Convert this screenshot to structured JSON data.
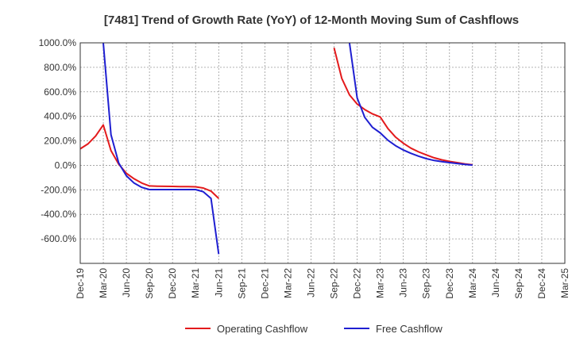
{
  "chart_data": {
    "type": "line",
    "title": "[7481]  Trend of Growth Rate (YoY) of 12-Month Moving Sum of Cashflows",
    "xlabel": "",
    "ylabel": "",
    "ylim": [
      -800,
      1000
    ],
    "yticks": [
      -600,
      -400,
      -200,
      0,
      200,
      400,
      600,
      800,
      1000
    ],
    "ytick_labels": [
      "-600.0%",
      "-400.0%",
      "-200.0%",
      "0.0%",
      "200.0%",
      "400.0%",
      "600.0%",
      "800.0%",
      "1000.0%"
    ],
    "xticks": [
      "Dec-19",
      "Mar-20",
      "Jun-20",
      "Sep-20",
      "Dec-20",
      "Mar-21",
      "Jun-21",
      "Sep-21",
      "Dec-21",
      "Mar-22",
      "Jun-22",
      "Sep-22",
      "Dec-22",
      "Mar-23",
      "Jun-23",
      "Sep-23",
      "Dec-23",
      "Mar-24",
      "Jun-24",
      "Sep-24",
      "Dec-24",
      "Mar-25"
    ],
    "grid": true,
    "legend_position": "bottom",
    "series": [
      {
        "name": "Operating Cashflow",
        "color": "#e31a1c",
        "points": [
          [
            "Dec-19",
            135
          ],
          [
            "Jan-20",
            175
          ],
          [
            "Feb-20",
            240
          ],
          [
            "Mar-20",
            330
          ],
          [
            "Apr-20",
            120
          ],
          [
            "May-20",
            10
          ],
          [
            "Jun-20",
            -65
          ],
          [
            "Jul-20",
            -110
          ],
          [
            "Aug-20",
            -145
          ],
          [
            "Sep-20",
            -168
          ],
          [
            "Oct-20",
            -170
          ],
          [
            "Nov-20",
            -171
          ],
          [
            "Dec-20",
            -172
          ],
          [
            "Jan-21",
            -173
          ],
          [
            "Feb-21",
            -174
          ],
          [
            "Mar-21",
            -175
          ],
          [
            "Apr-21",
            -185
          ],
          [
            "May-21",
            -210
          ],
          [
            "Jun-21",
            -270
          ],
          [
            "Sep-22",
            960
          ],
          [
            "Oct-22",
            710
          ],
          [
            "Nov-22",
            575
          ],
          [
            "Dec-22",
            500
          ],
          [
            "Jan-23",
            455
          ],
          [
            "Feb-23",
            420
          ],
          [
            "Mar-23",
            395
          ],
          [
            "Apr-23",
            300
          ],
          [
            "May-23",
            230
          ],
          [
            "Jun-23",
            180
          ],
          [
            "Jul-23",
            140
          ],
          [
            "Aug-23",
            110
          ],
          [
            "Sep-23",
            85
          ],
          [
            "Oct-23",
            62
          ],
          [
            "Nov-23",
            45
          ],
          [
            "Dec-23",
            32
          ],
          [
            "Jan-24",
            22
          ],
          [
            "Feb-24",
            12
          ],
          [
            "Mar-24",
            5
          ]
        ]
      },
      {
        "name": "Free Cashflow",
        "color": "#1f1fd1",
        "points": [
          [
            "Mar-20",
            1000
          ],
          [
            "Apr-20",
            250
          ],
          [
            "May-20",
            20
          ],
          [
            "Jun-20",
            -85
          ],
          [
            "Jul-20",
            -145
          ],
          [
            "Aug-20",
            -180
          ],
          [
            "Sep-20",
            -198
          ],
          [
            "Oct-20",
            -198
          ],
          [
            "Nov-20",
            -198
          ],
          [
            "Dec-20",
            -198
          ],
          [
            "Jan-21",
            -198
          ],
          [
            "Feb-21",
            -198
          ],
          [
            "Mar-21",
            -198
          ],
          [
            "Apr-21",
            -215
          ],
          [
            "May-21",
            -270
          ],
          [
            "Jun-21",
            -725
          ],
          [
            "Nov-22",
            1000
          ],
          [
            "Dec-22",
            550
          ],
          [
            "Jan-23",
            390
          ],
          [
            "Feb-23",
            310
          ],
          [
            "Mar-23",
            265
          ],
          [
            "Apr-23",
            205
          ],
          [
            "May-23",
            160
          ],
          [
            "Jun-23",
            125
          ],
          [
            "Jul-23",
            98
          ],
          [
            "Aug-23",
            75
          ],
          [
            "Sep-23",
            55
          ],
          [
            "Oct-23",
            40
          ],
          [
            "Nov-23",
            30
          ],
          [
            "Dec-23",
            22
          ],
          [
            "Jan-24",
            15
          ],
          [
            "Feb-24",
            8
          ],
          [
            "Mar-24",
            2
          ]
        ]
      }
    ]
  }
}
